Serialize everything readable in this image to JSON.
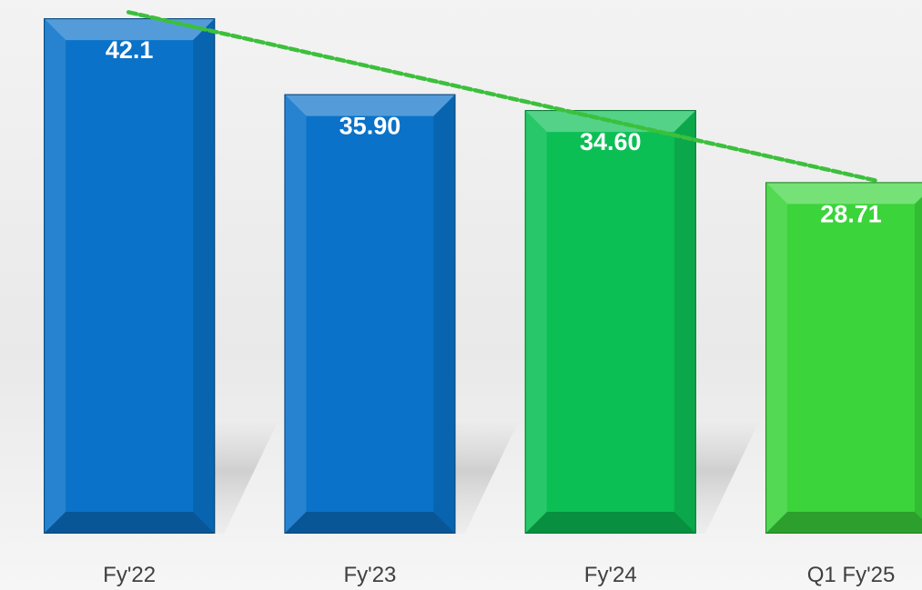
{
  "chart_data": {
    "type": "bar",
    "categories": [
      "Fy'22",
      "Fy'23",
      "Fy'24",
      "Q1 Fy'25"
    ],
    "values": [
      42.1,
      35.9,
      34.6,
      28.71
    ],
    "value_labels": [
      "42.1",
      "35.90",
      "34.60",
      "28.71"
    ],
    "bar_colors": [
      "#0a72c8",
      "#0a72c8",
      "#0bbf55",
      "#3bd43b"
    ],
    "trendline": {
      "style": "dashed",
      "color": "#3cc03c",
      "from_category": "Fy'22",
      "to_category": "Q1 Fy'25",
      "from_value": 42.6,
      "to_value": 28.8
    },
    "ylim": [
      0,
      43
    ],
    "title": "",
    "xlabel": "",
    "ylabel": "",
    "grid": false,
    "legend": "none"
  }
}
